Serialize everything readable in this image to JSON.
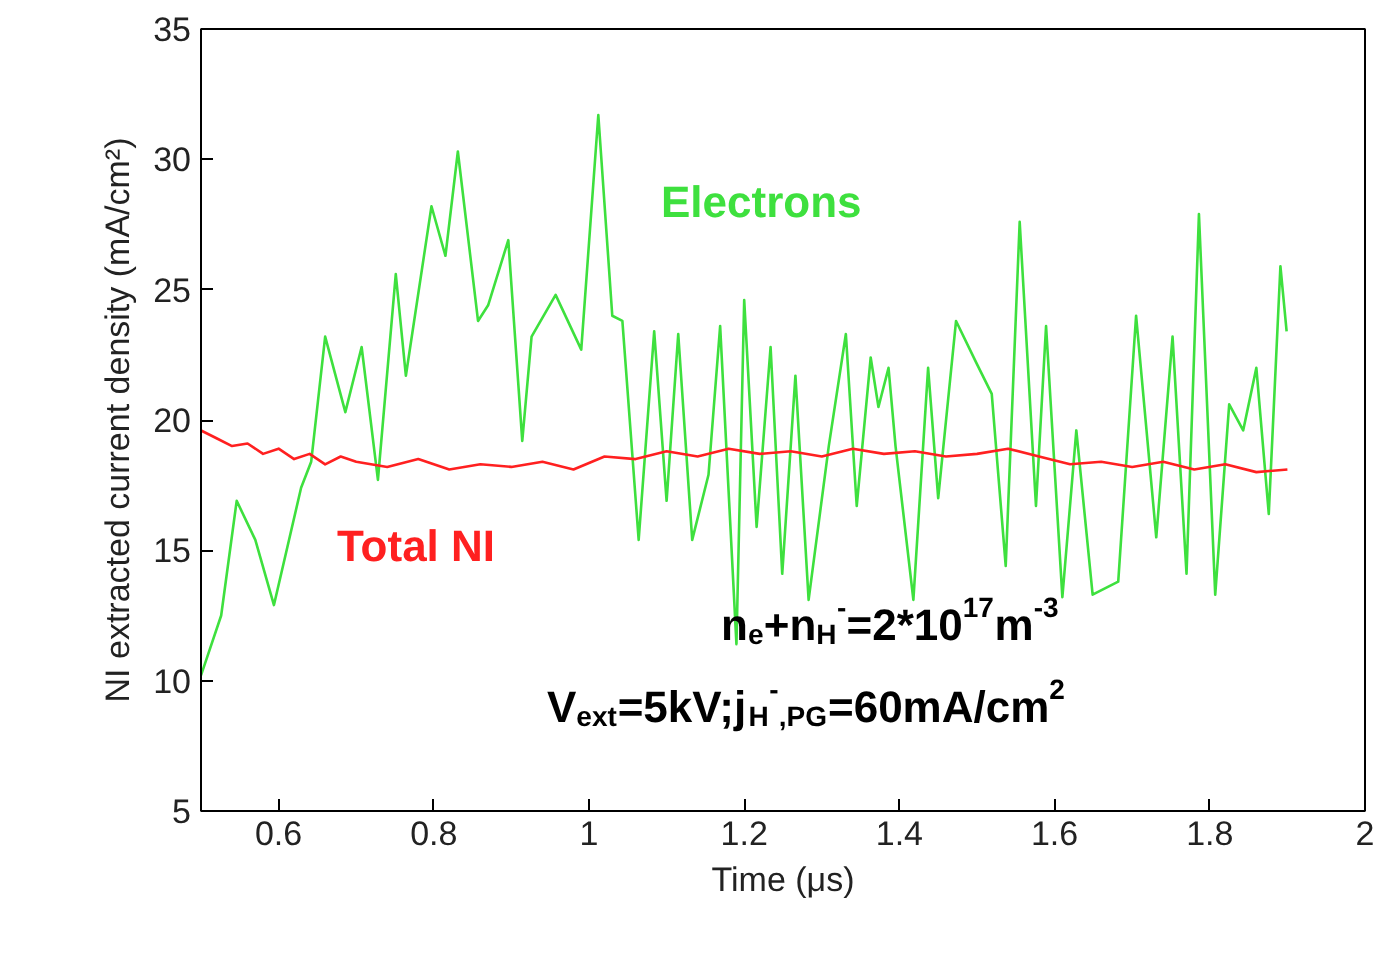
{
  "chart_data": {
    "type": "line",
    "xlabel": "Time (μs)",
    "ylabel": "NI extracted current density (mA/cm²)",
    "xlim": [
      0.5,
      2
    ],
    "ylim": [
      5,
      35
    ],
    "xticks": [
      0.6,
      0.8,
      1,
      1.2,
      1.4,
      1.6,
      1.8,
      2
    ],
    "yticks": [
      5,
      10,
      15,
      20,
      25,
      30,
      35
    ],
    "grid": false,
    "marker": "none",
    "line_style": "solid",
    "annotations": [
      "n$_{e}$+n$_{H}$$^{-}$=2*10$^{17}$m$^{-3}$",
      "V$_{ext}$=5kV;j$_{H}$$^{-}$$_{,PG}$=60mA/cm$^{2}$"
    ],
    "series": [
      {
        "name": "Electrons",
        "color": "#3ee03e",
        "x": [
          0.5,
          0.526,
          0.546,
          0.57,
          0.594,
          0.629,
          0.642,
          0.66,
          0.686,
          0.707,
          0.728,
          0.751,
          0.764,
          0.797,
          0.815,
          0.831,
          0.857,
          0.87,
          0.896,
          0.914,
          0.926,
          0.957,
          0.99,
          1.012,
          1.03,
          1.043,
          1.064,
          1.084,
          1.1,
          1.115,
          1.133,
          1.154,
          1.169,
          1.19,
          1.2,
          1.216,
          1.234,
          1.249,
          1.266,
          1.283,
          1.309,
          1.331,
          1.345,
          1.363,
          1.373,
          1.386,
          1.395,
          1.418,
          1.437,
          1.45,
          1.473,
          1.499,
          1.519,
          1.537,
          1.555,
          1.576,
          1.589,
          1.61,
          1.628,
          1.649,
          1.682,
          1.705,
          1.731,
          1.752,
          1.77,
          1.786,
          1.807,
          1.825,
          1.843,
          1.86,
          1.876,
          1.891,
          1.899
        ],
        "values": [
          10.2,
          12.5,
          16.9,
          15.4,
          12.9,
          17.4,
          18.4,
          23.2,
          20.3,
          22.8,
          17.7,
          25.6,
          21.7,
          28.2,
          26.3,
          30.3,
          23.8,
          24.4,
          26.9,
          19.2,
          23.2,
          24.8,
          22.7,
          31.7,
          24.0,
          23.8,
          15.4,
          23.4,
          16.9,
          23.3,
          15.4,
          17.9,
          23.6,
          11.4,
          24.6,
          15.9,
          22.8,
          14.1,
          21.7,
          13.1,
          19.0,
          23.3,
          16.7,
          22.4,
          20.5,
          22.0,
          19.0,
          13.1,
          22.0,
          17.0,
          23.8,
          22.2,
          21.0,
          14.4,
          27.6,
          16.7,
          23.6,
          13.2,
          19.6,
          13.3,
          13.8,
          24.0,
          15.5,
          23.2,
          14.1,
          27.9,
          13.3,
          20.6,
          19.6,
          22.0,
          16.4,
          25.9,
          23.4
        ]
      },
      {
        "name": "Total NI",
        "color": "#ff2020",
        "x": [
          0.5,
          0.52,
          0.54,
          0.56,
          0.58,
          0.6,
          0.62,
          0.64,
          0.66,
          0.68,
          0.7,
          0.74,
          0.78,
          0.82,
          0.86,
          0.9,
          0.94,
          0.98,
          1.02,
          1.06,
          1.1,
          1.14,
          1.18,
          1.22,
          1.26,
          1.3,
          1.34,
          1.38,
          1.42,
          1.46,
          1.5,
          1.54,
          1.58,
          1.62,
          1.66,
          1.7,
          1.74,
          1.78,
          1.82,
          1.86,
          1.9
        ],
        "values": [
          19.6,
          19.3,
          19.0,
          19.1,
          18.7,
          18.9,
          18.5,
          18.7,
          18.3,
          18.6,
          18.4,
          18.2,
          18.5,
          18.1,
          18.3,
          18.2,
          18.4,
          18.1,
          18.6,
          18.5,
          18.8,
          18.6,
          18.9,
          18.7,
          18.8,
          18.6,
          18.9,
          18.7,
          18.8,
          18.6,
          18.7,
          18.9,
          18.6,
          18.3,
          18.4,
          18.2,
          18.4,
          18.1,
          18.3,
          18.0,
          18.1
        ]
      }
    ]
  }
}
